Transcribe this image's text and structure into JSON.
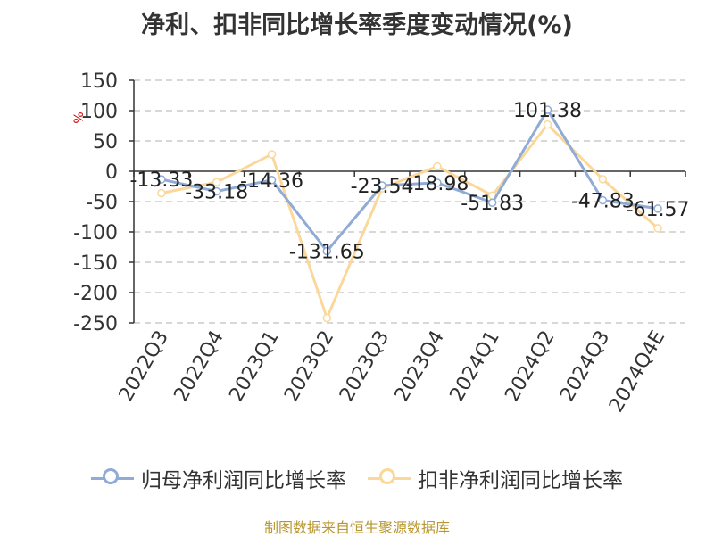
{
  "title": "净利、扣非同比增长率季度变动情况(%)",
  "source": "制图数据来自恒生聚源数据库",
  "colors": {
    "series1": "#8fabd6",
    "series2": "#fbd89a",
    "grid": "#cccccc",
    "axis": "#333333",
    "unit": "#cc0000"
  },
  "chart_data": {
    "type": "line",
    "title": "净利、扣非同比增长率季度变动情况(%)",
    "ylabel": "%",
    "ylim": [
      -250,
      150
    ],
    "yticks": [
      150,
      100,
      50,
      0,
      -50,
      -100,
      -150,
      -200,
      -250
    ],
    "grid": true,
    "legend_position": "bottom",
    "categories": [
      "2022Q3",
      "2022Q4",
      "2023Q1",
      "2023Q2",
      "2023Q3",
      "2023Q4",
      "2024Q1",
      "2024Q2",
      "2024Q3",
      "2024Q4E"
    ],
    "series": [
      {
        "name": "归母净利润同比增长率",
        "values": [
          -13.33,
          -33.18,
          -14.36,
          -131.65,
          -23.54,
          -18.98,
          -51.83,
          101.38,
          -47.83,
          -61.57
        ],
        "labels": [
          "-13.33",
          "-33.18",
          "-14.36",
          "-131.65",
          "-23.54",
          "-18.98",
          "-51.83",
          "101.38",
          "-47.83",
          "-61.57"
        ]
      },
      {
        "name": "扣非净利润同比增长率",
        "values": [
          -36,
          -18,
          28,
          -242,
          -28,
          8,
          -40,
          77,
          -13,
          -94
        ]
      }
    ]
  }
}
